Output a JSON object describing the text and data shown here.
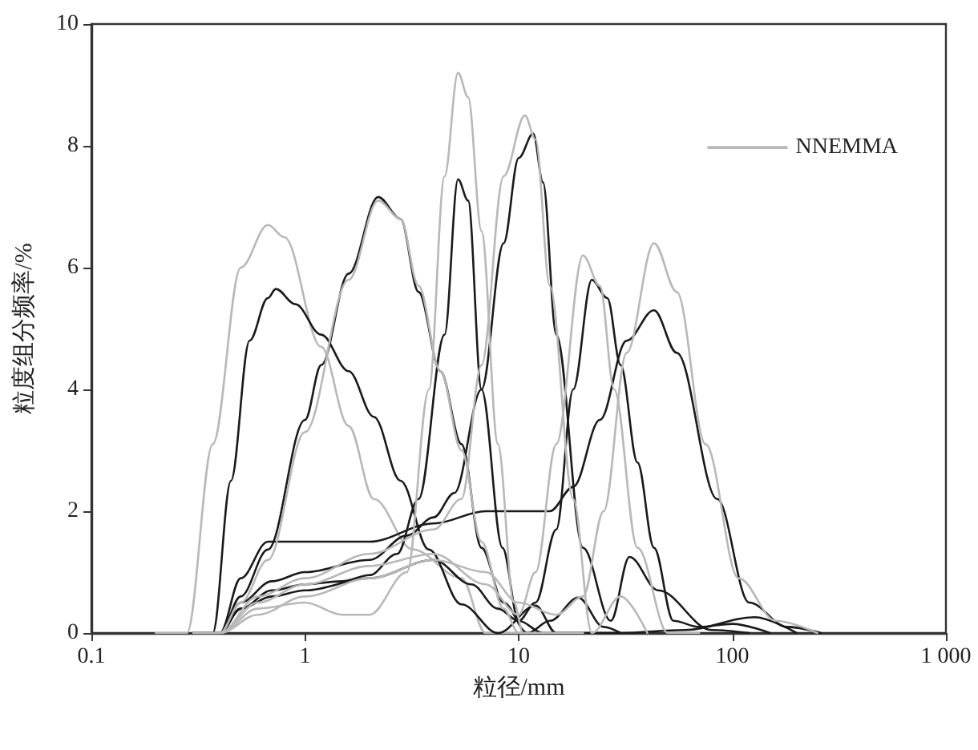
{
  "chart_data": {
    "type": "line",
    "xlabel": "粒径/mm",
    "ylabel": "粒度组分频率/%",
    "log": "x",
    "xlim": [
      0.1,
      1000
    ],
    "xticks": [
      0.1,
      1,
      10,
      100,
      {
        "value": 1000,
        "label": "1 000"
      }
    ],
    "ylim": [
      0,
      10
    ],
    "yticks": [
      0,
      2,
      4,
      6,
      8,
      10
    ],
    "grid": false,
    "legend": "top right",
    "marker": "none",
    "line_style": "solid",
    "series": [
      {
        "color": "#1a1a1a",
        "x": [
          0.3,
          0.37,
          0.45,
          0.55,
          0.67,
          0.73,
          0.9,
          1.19,
          1.6,
          2.1,
          2.8,
          3.8,
          5.4,
          8,
          12,
          15,
          30
        ],
        "values": [
          0,
          0,
          2.5,
          4.8,
          5.5,
          5.65,
          5.4,
          4.9,
          4.3,
          3.55,
          2.5,
          1.37,
          0.47,
          0,
          0.45,
          0,
          0
        ]
      },
      {
        "color": "#1a1a1a",
        "x": [
          0.3,
          0.4,
          0.5,
          0.67,
          1,
          1.19,
          1.6,
          2.2,
          2.8,
          3.4,
          4.3,
          5.4,
          6.7,
          8.5,
          11,
          14,
          19,
          25,
          30
        ],
        "values": [
          0,
          0,
          0.6,
          1.37,
          3.5,
          4.4,
          5.9,
          7.16,
          6.8,
          5.6,
          4.3,
          3.1,
          1.4,
          0.5,
          0,
          0.2,
          0.58,
          0.1,
          0
        ]
      },
      {
        "color": "#1a1a1a",
        "x": [
          0.3,
          0.4,
          0.5,
          0.7,
          1,
          1.5,
          2,
          2.7,
          3.4,
          4.5,
          5.2,
          5.8,
          6.7,
          8.4,
          10,
          13,
          30,
          60,
          127,
          200
        ],
        "values": [
          0,
          0,
          0.4,
          0.7,
          0.8,
          0.85,
          0.95,
          1.3,
          2.2,
          4.9,
          7.45,
          7.1,
          4.0,
          1.4,
          0.2,
          0,
          0,
          0.05,
          0.26,
          0
        ]
      },
      {
        "color": "#1a1a1a",
        "x": [
          0.3,
          0.4,
          0.5,
          0.7,
          1,
          2,
          3,
          4,
          5,
          6.7,
          8.5,
          10,
          11.7,
          13,
          15,
          20,
          27,
          33,
          45,
          80,
          120
        ],
        "values": [
          0,
          0,
          0.5,
          0.85,
          1.0,
          1.2,
          1.6,
          1.9,
          2.3,
          4.0,
          6.4,
          7.8,
          8.2,
          7.4,
          4.9,
          1.4,
          0.2,
          1.25,
          0.7,
          0.05,
          0
        ]
      },
      {
        "color": "#1a1a1a",
        "x": [
          0.3,
          0.4,
          0.5,
          0.7,
          1,
          2,
          4,
          6,
          8,
          10,
          12,
          15,
          18,
          22,
          26,
          30,
          36,
          43,
          53,
          70,
          100,
          150
        ],
        "values": [
          0,
          0,
          0.4,
          0.6,
          0.7,
          0.9,
          1.2,
          0.8,
          0.4,
          0.2,
          0.5,
          1.7,
          4.0,
          5.8,
          5.5,
          4.4,
          2.8,
          1.4,
          0.2,
          0.1,
          0.15,
          0
        ]
      },
      {
        "color": "#1a1a1a",
        "x": [
          0.3,
          0.4,
          0.5,
          0.67,
          1,
          2,
          4,
          7,
          10,
          14,
          18,
          24,
          32,
          43,
          55,
          85,
          120,
          180,
          260
        ],
        "values": [
          0,
          0,
          0.9,
          1.5,
          1.5,
          1.5,
          1.8,
          2.0,
          2.0,
          2.0,
          2.4,
          3.5,
          4.8,
          5.3,
          4.6,
          2.2,
          0.5,
          0.1,
          0
        ]
      },
      {
        "name": "NNEMMA",
        "color": "#b8b8b8",
        "x": [
          0.2,
          0.28,
          0.37,
          0.5,
          0.67,
          0.8,
          1.19,
          1.6,
          2.1,
          3.2,
          5.4,
          7,
          12,
          30
        ],
        "values": [
          0,
          0,
          3.1,
          6.0,
          6.7,
          6.5,
          4.7,
          3.4,
          2.2,
          1.37,
          0.9,
          0,
          0,
          0
        ]
      },
      {
        "color": "#b8b8b8",
        "x": [
          0.3,
          0.4,
          0.5,
          0.67,
          1,
          1.6,
          2.2,
          2.8,
          3.4,
          4.3,
          5.4,
          6.7,
          8.5,
          10,
          12,
          20
        ],
        "values": [
          0,
          0,
          0.5,
          1.2,
          3.3,
          5.8,
          7.1,
          6.8,
          5.7,
          4.3,
          3.0,
          1.5,
          0.4,
          0,
          0,
          0
        ]
      },
      {
        "color": "#b8b8b8",
        "x": [
          0.3,
          0.4,
          0.6,
          1,
          1.5,
          2,
          3,
          3.8,
          4.5,
          5.2,
          5.8,
          6.7,
          8,
          9.5,
          10.5,
          20
        ],
        "values": [
          0,
          0,
          0.4,
          0.5,
          0.3,
          0.3,
          1.0,
          4.0,
          7.5,
          9.2,
          8.8,
          6.6,
          3.1,
          0.5,
          0,
          0
        ]
      },
      {
        "color": "#b8b8b8",
        "x": [
          0.3,
          0.4,
          0.6,
          1,
          2,
          4,
          5.4,
          6.7,
          8.5,
          10.7,
          12,
          14,
          18,
          22,
          30,
          40
        ],
        "values": [
          0,
          0,
          0.6,
          0.9,
          1.3,
          1.7,
          2.2,
          4.4,
          7.5,
          8.5,
          8.1,
          5.7,
          2.2,
          0,
          0.6,
          0
        ]
      },
      {
        "color": "#b8b8b8",
        "x": [
          0.3,
          0.4,
          0.6,
          1,
          2,
          4,
          7,
          10,
          12,
          15,
          20,
          24,
          28,
          36,
          50,
          70
        ],
        "values": [
          0,
          0,
          0.5,
          0.8,
          1.1,
          1.3,
          0.8,
          0.3,
          1.0,
          3.1,
          6.2,
          5.7,
          4.0,
          1.4,
          0,
          0
        ]
      },
      {
        "color": "#b8b8b8",
        "x": [
          0.3,
          0.4,
          0.6,
          1,
          2,
          4,
          7,
          10,
          15,
          20,
          25,
          32,
          43,
          55,
          75,
          107,
          160,
          250
        ],
        "values": [
          0,
          0,
          0.3,
          0.6,
          0.9,
          1.2,
          1.0,
          0.5,
          0.3,
          0.6,
          2.0,
          4.6,
          6.4,
          5.6,
          3.1,
          0.9,
          0.2,
          0
        ]
      }
    ]
  }
}
